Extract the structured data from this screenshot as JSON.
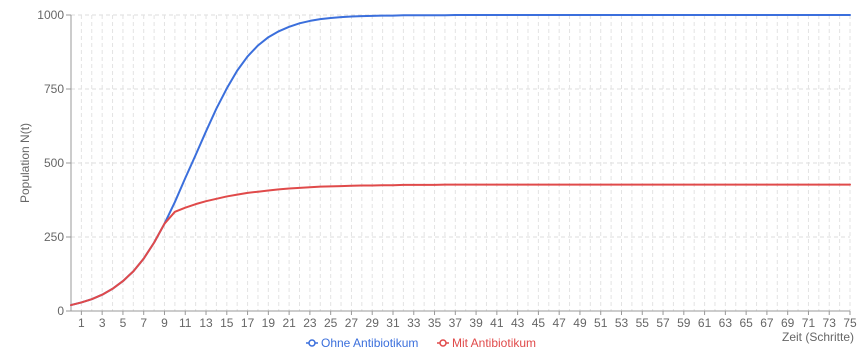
{
  "chart_data": {
    "type": "line",
    "title": "",
    "xlabel": "Zeit (Schritte)",
    "ylabel": "Population N(t)",
    "x": [
      0,
      1,
      2,
      3,
      4,
      5,
      6,
      7,
      8,
      9,
      10,
      11,
      12,
      13,
      14,
      15,
      16,
      17,
      18,
      19,
      20,
      21,
      22,
      23,
      24,
      25,
      26,
      27,
      28,
      29,
      30,
      31,
      32,
      33,
      34,
      35,
      36,
      37,
      38,
      39,
      40,
      41,
      42,
      43,
      44,
      45,
      46,
      47,
      48,
      49,
      50,
      51,
      52,
      53,
      54,
      55,
      56,
      57,
      58,
      59,
      60,
      61,
      62,
      63,
      64,
      65,
      66,
      67,
      68,
      69,
      70,
      71,
      72,
      73,
      74,
      75
    ],
    "x_tick_labels": [
      1,
      3,
      5,
      7,
      9,
      11,
      13,
      15,
      17,
      19,
      21,
      23,
      25,
      27,
      29,
      31,
      33,
      35,
      37,
      39,
      41,
      43,
      45,
      47,
      49,
      51,
      53,
      55,
      57,
      59,
      61,
      63,
      65,
      67,
      69,
      71,
      73,
      75
    ],
    "y_ticks": [
      0,
      250,
      500,
      750,
      1000
    ],
    "xlim": [
      0,
      75
    ],
    "ylim": [
      0,
      1000
    ],
    "grid": true,
    "legend_position": "bottom",
    "series": [
      {
        "name": "Ohne Antibiotikum",
        "color": "#3b6fdc",
        "values": [
          20,
          29,
          40,
          55,
          75,
          101,
          134,
          177,
          231,
          295,
          368,
          449,
          527,
          607,
          684,
          752,
          812,
          860,
          897,
          925,
          945,
          960,
          972,
          980,
          986,
          990,
          993,
          995,
          996,
          997,
          998,
          998,
          999,
          999,
          999,
          999,
          999,
          1000,
          1000,
          1000,
          1000,
          1000,
          1000,
          1000,
          1000,
          1000,
          1000,
          1000,
          1000,
          1000,
          1000,
          1000,
          1000,
          1000,
          1000,
          1000,
          1000,
          1000,
          1000,
          1000,
          1000,
          1000,
          1000,
          1000,
          1000,
          1000,
          1000,
          1000,
          1000,
          1000,
          1000,
          1000,
          1000,
          1000,
          1000,
          1000
        ]
      },
      {
        "name": "Mit Antibiotikum",
        "color": "#e04a4a",
        "values": [
          20,
          29,
          40,
          55,
          75,
          101,
          134,
          177,
          231,
          295,
          335,
          349,
          361,
          371,
          379,
          387,
          393,
          399,
          403,
          407,
          411,
          414,
          416,
          418,
          420,
          421,
          422,
          423,
          424,
          424,
          425,
          425,
          426,
          426,
          426,
          426,
          427,
          427,
          427,
          427,
          427,
          427,
          427,
          427,
          427,
          427,
          427,
          427,
          427,
          427,
          427,
          427,
          427,
          427,
          427,
          427,
          427,
          427,
          427,
          427,
          427,
          427,
          427,
          427,
          427,
          427,
          427,
          427,
          427,
          427,
          427,
          427,
          427,
          427,
          427,
          427
        ]
      }
    ]
  }
}
